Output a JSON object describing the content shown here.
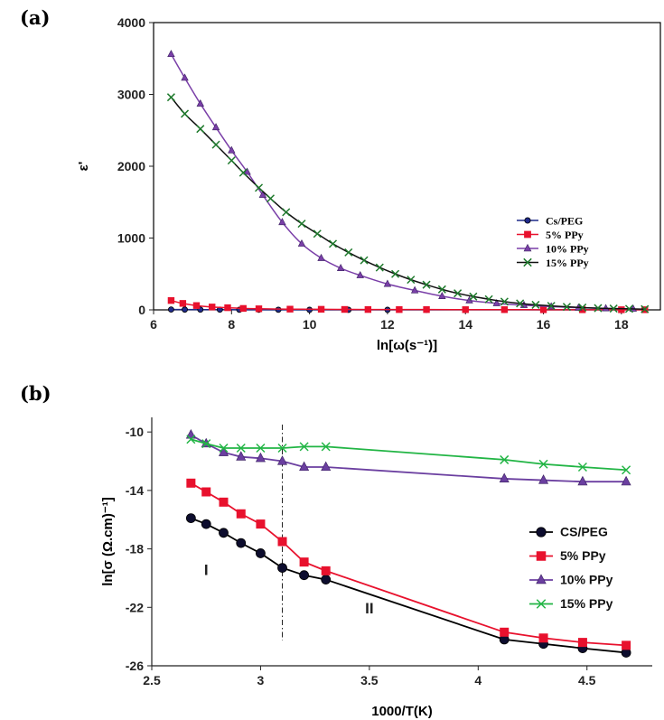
{
  "panel_a_label": "(a)",
  "panel_b_label": "(b)",
  "chart_data": [
    {
      "type": "line",
      "panel": "(a)",
      "xlabel": "ln[ω(s⁻¹)]",
      "ylabel": "ε'",
      "xlim": [
        6,
        19
      ],
      "ylim": [
        0,
        4000
      ],
      "xticks": [
        6,
        8,
        10,
        12,
        14,
        16,
        18
      ],
      "yticks": [
        0,
        1000,
        2000,
        3000,
        4000
      ],
      "legend_position": "center-right",
      "series": [
        {
          "name": "Cs/PEG",
          "color": "#1f2a8a",
          "marker": "circle",
          "x": [
            6.45,
            6.8,
            7.2,
            7.7,
            8.2,
            8.7,
            9.2,
            10,
            11,
            12,
            13,
            14,
            15,
            16,
            17,
            18,
            18.6
          ],
          "y": [
            5,
            4,
            3,
            3,
            2,
            2,
            2,
            1,
            1,
            1,
            1,
            1,
            1,
            1,
            1,
            1,
            1
          ]
        },
        {
          "name": "5% PPy",
          "color": "#e8112d",
          "marker": "square",
          "x": [
            6.45,
            6.75,
            7.1,
            7.5,
            7.9,
            8.3,
            8.7,
            9.5,
            10.3,
            10.9,
            11.5,
            12.3,
            13,
            14,
            15,
            16,
            17,
            18,
            18.6
          ],
          "y": [
            130,
            90,
            60,
            40,
            30,
            20,
            15,
            10,
            8,
            6,
            5,
            4,
            4,
            3,
            3,
            2,
            2,
            2,
            2
          ]
        },
        {
          "name": "10% PPy",
          "color": "#7a3fa8",
          "marker": "triangle",
          "x": [
            6.45,
            6.8,
            7.2,
            7.6,
            8.0,
            8.4,
            8.8,
            9.3,
            9.8,
            10.3,
            10.8,
            11.3,
            12,
            12.7,
            13.4,
            14.1,
            14.8,
            15.5,
            16.2,
            16.9,
            17.6,
            18.3
          ],
          "y": [
            3560,
            3230,
            2870,
            2540,
            2220,
            1920,
            1600,
            1220,
            920,
            720,
            580,
            480,
            360,
            270,
            190,
            130,
            90,
            65,
            45,
            30,
            20,
            15
          ]
        },
        {
          "name": "15% PPy",
          "color": "#1e7a2c",
          "marker": "x",
          "x": [
            6.45,
            6.8,
            7.2,
            7.6,
            8.0,
            8.3,
            8.7,
            9.0,
            9.4,
            9.8,
            10.2,
            10.6,
            11.0,
            11.4,
            11.8,
            12.2,
            12.6,
            13.0,
            13.4,
            13.8,
            14.2,
            14.6,
            15.0,
            15.4,
            15.8,
            16.2,
            16.6,
            17.0,
            17.4,
            17.8,
            18.2,
            18.6
          ],
          "y": [
            2960,
            2730,
            2520,
            2300,
            2080,
            1910,
            1700,
            1550,
            1360,
            1200,
            1060,
            920,
            800,
            690,
            590,
            500,
            420,
            350,
            285,
            230,
            185,
            148,
            115,
            90,
            70,
            55,
            42,
            32,
            24,
            18,
            14,
            10
          ]
        }
      ]
    },
    {
      "type": "line",
      "panel": "(b)",
      "xlabel": "1000/T(K)",
      "ylabel": "ln[σ (Ω.cm)⁻¹]",
      "xlim": [
        2.5,
        4.8
      ],
      "ylim": [
        -26,
        -9
      ],
      "xticks": [
        2.5,
        3,
        3.5,
        4,
        4.5
      ],
      "xtick_labels": [
        "2.5",
        "3",
        "3.5",
        "4",
        "4.5"
      ],
      "yticks": [
        -26,
        -22,
        -18,
        -14,
        -10
      ],
      "vline_x": 3.1,
      "region_labels": [
        {
          "text": "I",
          "x": 2.75,
          "y": -19.8
        },
        {
          "text": "II",
          "x": 3.5,
          "y": -22.4
        }
      ],
      "legend_position": "center-right",
      "series": [
        {
          "name": "CS/PEG",
          "color": "#0d0d2e",
          "marker": "circle",
          "x": [
            2.68,
            2.75,
            2.83,
            2.91,
            3.0,
            3.1,
            3.2,
            3.3,
            4.12,
            4.3,
            4.48,
            4.68
          ],
          "y": [
            -15.9,
            -16.3,
            -16.9,
            -17.6,
            -18.3,
            -19.3,
            -19.8,
            -20.1,
            -24.2,
            -24.5,
            -24.8,
            -25.1
          ]
        },
        {
          "name": "5% PPy",
          "color": "#e8112d",
          "marker": "square",
          "x": [
            2.68,
            2.75,
            2.83,
            2.91,
            3.0,
            3.1,
            3.2,
            3.3,
            4.12,
            4.3,
            4.48,
            4.68
          ],
          "y": [
            -13.5,
            -14.1,
            -14.8,
            -15.6,
            -16.3,
            -17.5,
            -18.9,
            -19.5,
            -23.7,
            -24.1,
            -24.4,
            -24.6
          ]
        },
        {
          "name": "10% PPy",
          "color": "#6b3fa0",
          "marker": "triangle",
          "x": [
            2.68,
            2.75,
            2.83,
            2.91,
            3.0,
            3.1,
            3.2,
            3.3,
            4.12,
            4.3,
            4.48,
            4.68
          ],
          "y": [
            -10.2,
            -10.8,
            -11.4,
            -11.7,
            -11.8,
            -12.0,
            -12.4,
            -12.4,
            -13.2,
            -13.3,
            -13.4,
            -13.4
          ]
        },
        {
          "name": "15% PPy",
          "color": "#22b545",
          "marker": "x",
          "x": [
            2.68,
            2.75,
            2.83,
            2.91,
            3.0,
            3.1,
            3.2,
            3.3,
            4.12,
            4.3,
            4.48,
            4.68
          ],
          "y": [
            -10.5,
            -10.8,
            -11.1,
            -11.1,
            -11.1,
            -11.1,
            -11.0,
            -11.0,
            -11.9,
            -12.2,
            -12.4,
            -12.6
          ]
        }
      ]
    }
  ]
}
